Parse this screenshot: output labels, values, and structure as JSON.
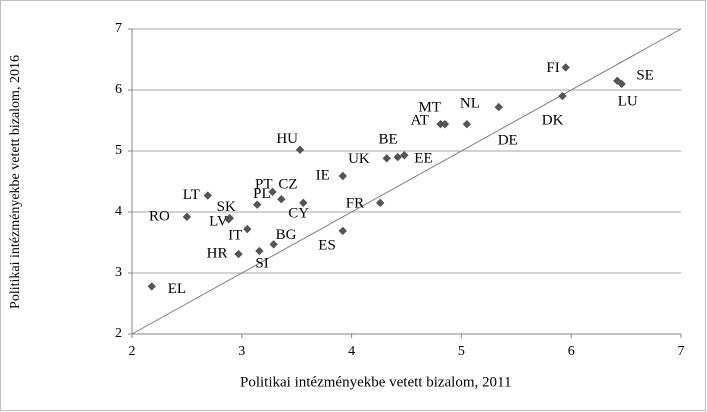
{
  "chart_data": {
    "type": "scatter",
    "x_label": "Politikai  intézményekbe  vetett  bizalom,  2011",
    "y_label": "Politikai intézményekbe vetett bizalom, 2016",
    "labels": [
      "EL",
      "RO",
      "LT",
      "SK",
      "LV",
      "IT",
      "HR",
      "SI",
      "BG",
      "PL",
      "PT",
      "CZ",
      "CY",
      "HU",
      "IE",
      "ES",
      "FR",
      "UK",
      "BE",
      "EE",
      "MT",
      "AT",
      "NL",
      "DE",
      "DK",
      "FI",
      "SE",
      "LU"
    ],
    "x": [
      2.18,
      2.5,
      2.69,
      2.88,
      2.89,
      3.05,
      2.97,
      3.16,
      3.29,
      3.14,
      3.28,
      3.36,
      3.56,
      3.53,
      3.92,
      3.92,
      4.26,
      4.32,
      4.42,
      4.48,
      4.81,
      4.85,
      5.05,
      5.34,
      5.92,
      5.95,
      6.42,
      6.46
    ],
    "values": [
      2.78,
      3.92,
      4.27,
      3.88,
      3.9,
      3.72,
      3.31,
      3.36,
      3.47,
      4.12,
      4.33,
      4.21,
      4.15,
      5.02,
      4.59,
      3.69,
      4.15,
      4.88,
      4.9,
      4.93,
      5.44,
      5.44,
      5.44,
      5.72,
      5.9,
      6.37,
      6.15,
      6.1
    ],
    "color": "#555555",
    "xlim": [
      2,
      7
    ],
    "xticks": [
      2,
      3,
      4,
      5,
      6,
      7
    ],
    "ylim": [
      2,
      7
    ],
    "yticks": [
      2,
      3,
      4,
      5,
      6,
      7
    ],
    "grid": true
  }
}
